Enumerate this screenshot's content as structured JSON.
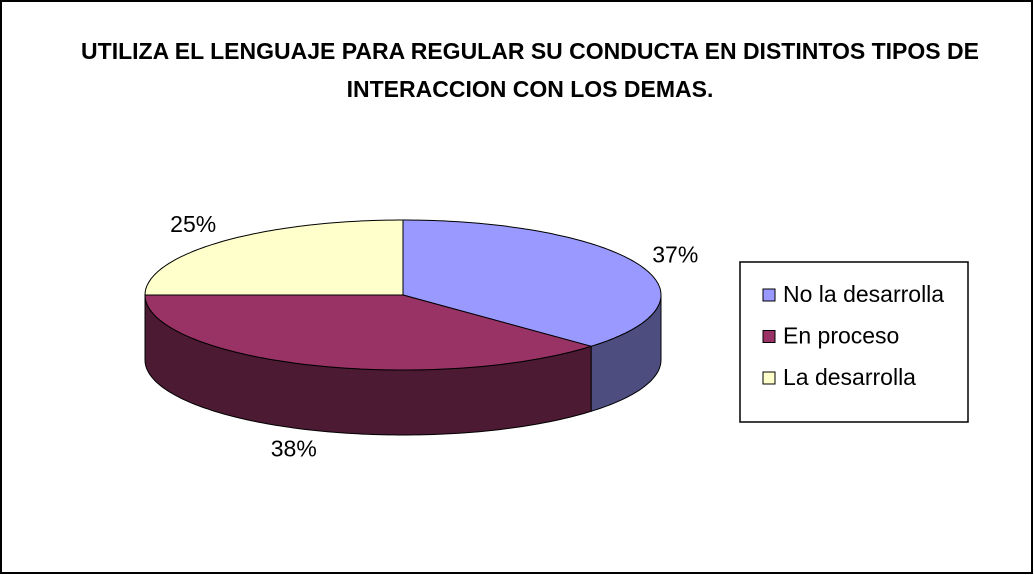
{
  "chart_data": {
    "type": "pie3d",
    "title": "UTILIZA EL LENGUAJE PARA REGULAR SU CONDUCTA EN DISTINTOS TIPOS DE INTERACCION CON LOS DEMAS.",
    "categories": [
      "No la desarrolla",
      "En proceso",
      "La desarrolla"
    ],
    "values": [
      37,
      38,
      25
    ],
    "value_labels": [
      "37%",
      "38%",
      "25%"
    ],
    "colors": [
      "#9999ff",
      "#993366",
      "#ffffcc"
    ],
    "legend": "right"
  }
}
